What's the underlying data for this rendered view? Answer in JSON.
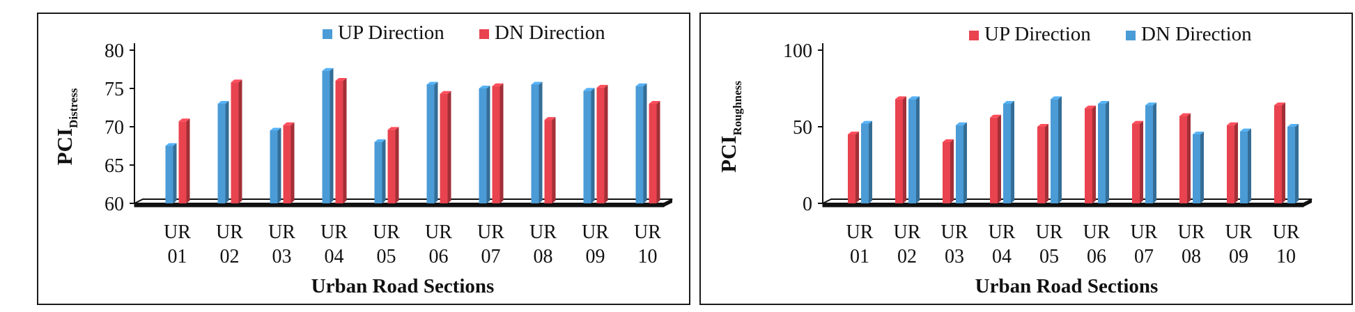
{
  "charts": [
    {
      "type": "bar",
      "ylabel_main": "PCI",
      "ylabel_sub": "Distress",
      "xlabel": "Urban Road Sections",
      "categories": [
        [
          "UR",
          "01"
        ],
        [
          "UR",
          "02"
        ],
        [
          "UR",
          "03"
        ],
        [
          "UR",
          "04"
        ],
        [
          "UR",
          "05"
        ],
        [
          "UR",
          "06"
        ],
        [
          "UR",
          "07"
        ],
        [
          "UR",
          "08"
        ],
        [
          "UR",
          "09"
        ],
        [
          "UR",
          "10"
        ]
      ],
      "ylim": [
        60,
        80
      ],
      "yticks": [
        60,
        65,
        70,
        75,
        80
      ],
      "legend_position": "top-right",
      "series": [
        {
          "name": "UP Direction",
          "color": "#4a9bd6",
          "values": [
            67.5,
            73.0,
            69.5,
            77.3,
            68.0,
            75.5,
            75.0,
            75.5,
            74.7,
            75.3
          ]
        },
        {
          "name": "DN Direction",
          "color": "#e8434f",
          "values": [
            70.7,
            75.8,
            70.2,
            76.0,
            69.6,
            74.3,
            75.3,
            70.9,
            75.1,
            73.0
          ]
        }
      ]
    },
    {
      "type": "bar",
      "ylabel_main": "PCI",
      "ylabel_sub": "Roughness",
      "xlabel": "Urban Road Sections",
      "categories": [
        [
          "UR",
          "01"
        ],
        [
          "UR",
          "02"
        ],
        [
          "UR",
          "03"
        ],
        [
          "UR",
          "04"
        ],
        [
          "UR",
          "05"
        ],
        [
          "UR",
          "06"
        ],
        [
          "UR",
          "07"
        ],
        [
          "UR",
          "08"
        ],
        [
          "UR",
          "09"
        ],
        [
          "UR",
          "10"
        ]
      ],
      "ylim": [
        0,
        100
      ],
      "yticks": [
        0,
        50,
        100
      ],
      "legend_position": "top-right",
      "series": [
        {
          "name": "UP Direction",
          "color": "#e8434f",
          "values": [
            45,
            68,
            40,
            56,
            50,
            62,
            52,
            57,
            51,
            64
          ]
        },
        {
          "name": "DN Direction",
          "color": "#4a9bd6",
          "values": [
            52,
            68,
            51,
            65,
            68,
            65,
            64,
            45,
            47,
            50
          ]
        }
      ]
    }
  ]
}
